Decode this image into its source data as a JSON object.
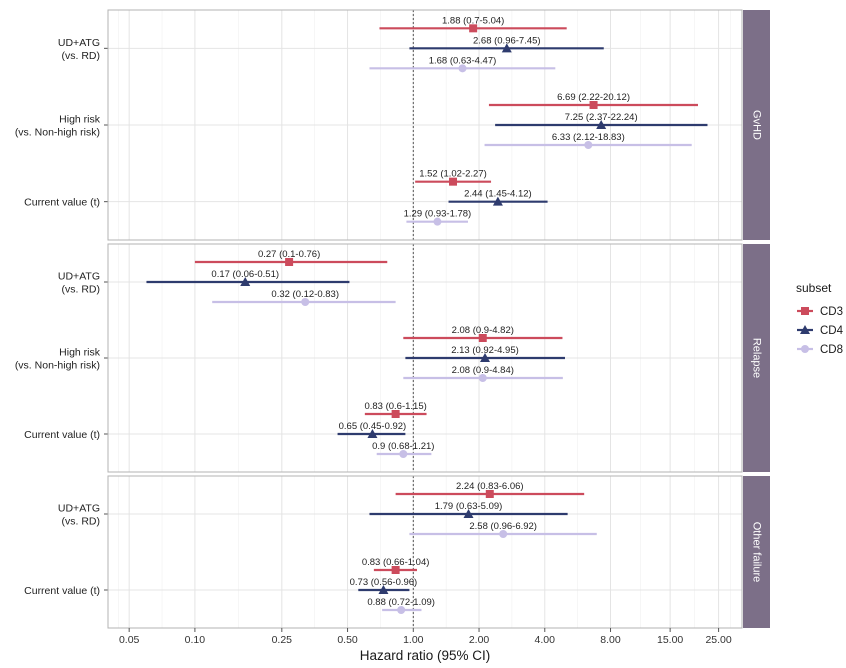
{
  "chart_data": {
    "type": "forest",
    "xlabel": "Hazard ratio (95% CI)",
    "x_scale": "log",
    "xlim": [
      0.04,
      32
    ],
    "x_ticks": [
      0.05,
      0.1,
      0.25,
      0.5,
      1.0,
      2.0,
      4.0,
      8.0,
      15.0,
      25.0
    ],
    "x_tick_labels": [
      "0.05",
      "0.10",
      "0.25",
      "0.50",
      "1.00",
      "2.00",
      "4.00",
      "8.00",
      "15.00",
      "25.00"
    ],
    "reference_line": 1.0,
    "legend": {
      "title": "subset",
      "position": "right",
      "items": [
        {
          "name": "CD3",
          "color": "#cc4b5c",
          "shape": "square"
        },
        {
          "name": "CD4",
          "color": "#2e3b6e",
          "shape": "triangle"
        },
        {
          "name": "CD8",
          "color": "#c7bfe6",
          "shape": "circle"
        }
      ]
    },
    "panels": [
      {
        "strip": "GvHD",
        "rows": [
          {
            "label": [
              "UD+ATG",
              "(vs. RD)"
            ],
            "estimates": [
              {
                "subset": "CD3",
                "hr": 1.88,
                "lo": 0.7,
                "hi": 5.04,
                "text": "1.88 (0.7-5.04)"
              },
              {
                "subset": "CD4",
                "hr": 2.68,
                "lo": 0.96,
                "hi": 7.45,
                "text": "2.68 (0.96-7.45)"
              },
              {
                "subset": "CD8",
                "hr": 1.68,
                "lo": 0.63,
                "hi": 4.47,
                "text": "1.68 (0.63-4.47)"
              }
            ]
          },
          {
            "label": [
              "High risk",
              "(vs. Non-high risk)"
            ],
            "estimates": [
              {
                "subset": "CD3",
                "hr": 6.69,
                "lo": 2.22,
                "hi": 20.12,
                "text": "6.69 (2.22-20.12)"
              },
              {
                "subset": "CD4",
                "hr": 7.25,
                "lo": 2.37,
                "hi": 22.24,
                "text": "7.25 (2.37-22.24)"
              },
              {
                "subset": "CD8",
                "hr": 6.33,
                "lo": 2.12,
                "hi": 18.83,
                "text": "6.33 (2.12-18.83)"
              }
            ]
          },
          {
            "label": [
              "Current value (t)"
            ],
            "estimates": [
              {
                "subset": "CD3",
                "hr": 1.52,
                "lo": 1.02,
                "hi": 2.27,
                "text": "1.52 (1.02-2.27)"
              },
              {
                "subset": "CD4",
                "hr": 2.44,
                "lo": 1.45,
                "hi": 4.12,
                "text": "2.44 (1.45-4.12)"
              },
              {
                "subset": "CD8",
                "hr": 1.29,
                "lo": 0.93,
                "hi": 1.78,
                "text": "1.29 (0.93-1.78)"
              }
            ]
          }
        ]
      },
      {
        "strip": "Relapse",
        "rows": [
          {
            "label": [
              "UD+ATG",
              "(vs. RD)"
            ],
            "estimates": [
              {
                "subset": "CD3",
                "hr": 0.27,
                "lo": 0.1,
                "hi": 0.76,
                "text": "0.27 (0.1-0.76)"
              },
              {
                "subset": "CD4",
                "hr": 0.17,
                "lo": 0.06,
                "hi": 0.51,
                "text": "0.17 (0.06-0.51)"
              },
              {
                "subset": "CD8",
                "hr": 0.32,
                "lo": 0.12,
                "hi": 0.83,
                "text": "0.32 (0.12-0.83)"
              }
            ]
          },
          {
            "label": [
              "High risk",
              "(vs. Non-high risk)"
            ],
            "estimates": [
              {
                "subset": "CD3",
                "hr": 2.08,
                "lo": 0.9,
                "hi": 4.82,
                "text": "2.08 (0.9-4.82)"
              },
              {
                "subset": "CD4",
                "hr": 2.13,
                "lo": 0.92,
                "hi": 4.95,
                "text": "2.13 (0.92-4.95)"
              },
              {
                "subset": "CD8",
                "hr": 2.08,
                "lo": 0.9,
                "hi": 4.84,
                "text": "2.08 (0.9-4.84)"
              }
            ]
          },
          {
            "label": [
              "Current value (t)"
            ],
            "estimates": [
              {
                "subset": "CD3",
                "hr": 0.83,
                "lo": 0.6,
                "hi": 1.15,
                "text": "0.83 (0.6-1.15)"
              },
              {
                "subset": "CD4",
                "hr": 0.65,
                "lo": 0.45,
                "hi": 0.92,
                "text": "0.65 (0.45-0.92)"
              },
              {
                "subset": "CD8",
                "hr": 0.9,
                "lo": 0.68,
                "hi": 1.21,
                "text": "0.9 (0.68-1.21)"
              }
            ]
          }
        ]
      },
      {
        "strip": "Other failure",
        "rows": [
          {
            "label": [
              "UD+ATG",
              "(vs. RD)"
            ],
            "estimates": [
              {
                "subset": "CD3",
                "hr": 2.24,
                "lo": 0.83,
                "hi": 6.06,
                "text": "2.24 (0.83-6.06)"
              },
              {
                "subset": "CD4",
                "hr": 1.79,
                "lo": 0.63,
                "hi": 5.09,
                "text": "1.79 (0.63-5.09)"
              },
              {
                "subset": "CD8",
                "hr": 2.58,
                "lo": 0.96,
                "hi": 6.92,
                "text": "2.58 (0.96-6.92)"
              }
            ]
          },
          {
            "label": [
              "Current value (t)"
            ],
            "estimates": [
              {
                "subset": "CD3",
                "hr": 0.83,
                "lo": 0.66,
                "hi": 1.04,
                "text": "0.83 (0.66-1.04)"
              },
              {
                "subset": "CD4",
                "hr": 0.73,
                "lo": 0.56,
                "hi": 0.96,
                "text": "0.73 (0.56-0.96)"
              },
              {
                "subset": "CD8",
                "hr": 0.88,
                "lo": 0.72,
                "hi": 1.09,
                "text": "0.88 (0.72-1.09)"
              }
            ]
          }
        ]
      }
    ]
  }
}
